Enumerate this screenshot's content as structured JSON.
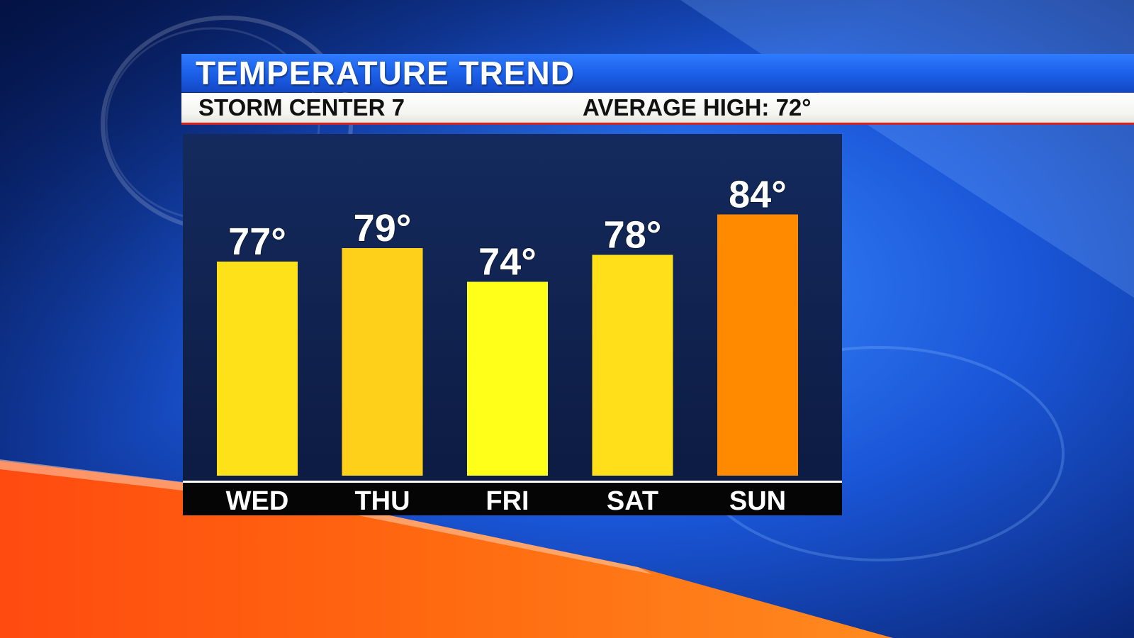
{
  "header": {
    "title": "TEMPERATURE TREND",
    "station": "STORM CENTER 7",
    "average_high": "AVERAGE HIGH: 72°"
  },
  "colors": {
    "panel": "#11204a",
    "axis_band": "#050505",
    "bar_high": "#ff8a00",
    "bar_warm": "#ffd01a",
    "bar_mild": "#ffff1a",
    "label_text": "#ffffff"
  },
  "chart_data": {
    "type": "bar",
    "title": "TEMPERATURE TREND",
    "categories": [
      "WED",
      "THU",
      "FRI",
      "SAT",
      "SUN"
    ],
    "values": [
      77,
      79,
      74,
      78,
      84
    ],
    "value_labels": [
      "77°",
      "79°",
      "74°",
      "78°",
      "84°"
    ],
    "bar_colors": [
      "#ffe11a",
      "#ffd01a",
      "#ffff1a",
      "#ffdf1a",
      "#ff8a00"
    ],
    "ylim": [
      50,
      90
    ],
    "grid": false,
    "legend": "none",
    "xlabel": "",
    "ylabel": ""
  }
}
